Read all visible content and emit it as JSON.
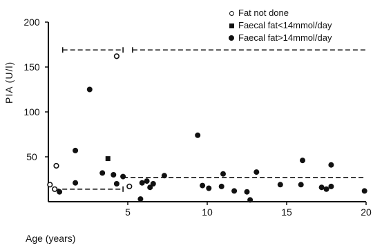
{
  "chart_data": {
    "type": "scatter",
    "xlabel": "Age (years)",
    "ylabel": "PIA (U/l)",
    "xlim": [
      0,
      20
    ],
    "ylim": [
      0,
      200
    ],
    "x_ticks": [
      5,
      10,
      15,
      20
    ],
    "y_ticks": [
      50,
      100,
      150,
      200
    ],
    "x_tick_labels": [
      "5",
      "10",
      "15",
      "20"
    ],
    "y_tick_labels": [
      "50",
      "100",
      "150",
      "200"
    ],
    "grid": false,
    "legend_position": "top-right",
    "legend": [
      {
        "label": "Fat not done",
        "marker": "open-circle"
      },
      {
        "label": "Faecal fat<14mmol/day",
        "marker": "filled-square"
      },
      {
        "label": "Faecal fat>14mmol/day",
        "marker": "filled-circle"
      }
    ],
    "series": [
      {
        "name": "Fat not done",
        "marker": "open-circle",
        "points": [
          [
            0.1,
            19
          ],
          [
            0.4,
            14
          ],
          [
            0.5,
            40
          ],
          [
            5.1,
            17
          ],
          [
            4.3,
            162
          ]
        ]
      },
      {
        "name": "Faecal fat<14mmol/day",
        "marker": "filled-square",
        "points": [
          [
            3.75,
            48
          ]
        ]
      },
      {
        "name": "Faecal fat>14mmol/day",
        "marker": "filled-circle",
        "points": [
          [
            0.7,
            11
          ],
          [
            1.7,
            57
          ],
          [
            1.7,
            21
          ],
          [
            2.6,
            125
          ],
          [
            3.4,
            32
          ],
          [
            4.1,
            30
          ],
          [
            4.3,
            20
          ],
          [
            4.7,
            28
          ],
          [
            5.8,
            3
          ],
          [
            5.9,
            21
          ],
          [
            6.2,
            23
          ],
          [
            6.4,
            16
          ],
          [
            6.6,
            20
          ],
          [
            7.3,
            29
          ],
          [
            9.4,
            74
          ],
          [
            9.7,
            18
          ],
          [
            10.1,
            15
          ],
          [
            10.9,
            17
          ],
          [
            11.0,
            31
          ],
          [
            11.7,
            12
          ],
          [
            12.5,
            11
          ],
          [
            12.7,
            2
          ],
          [
            13.1,
            33
          ],
          [
            14.6,
            19
          ],
          [
            15.9,
            19
          ],
          [
            16.0,
            46
          ],
          [
            17.2,
            16
          ],
          [
            17.5,
            14
          ],
          [
            17.8,
            41
          ],
          [
            17.8,
            17
          ],
          [
            19.9,
            12
          ]
        ]
      }
    ],
    "reference_ranges": [
      {
        "style": "dashed",
        "x": [
          0.4,
          4.7
        ],
        "y": 14,
        "end_caps": "right"
      },
      {
        "style": "dashed",
        "x": [
          4.7,
          20
        ],
        "y": 27,
        "end_caps": "none"
      },
      {
        "style": "dashed",
        "x": [
          0.9,
          4.7
        ],
        "y": 169,
        "end_caps": "both"
      },
      {
        "style": "dashed",
        "x": [
          5.3,
          20
        ],
        "y": 169,
        "end_caps": "left"
      }
    ]
  }
}
